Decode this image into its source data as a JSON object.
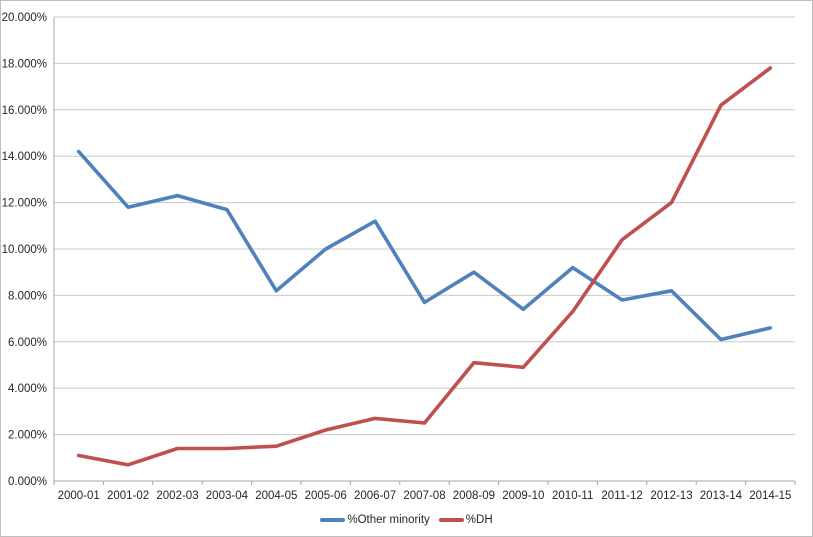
{
  "page": {
    "background": "#FFFFFF",
    "border_color": "#BFBFBF"
  },
  "chart_data": {
    "type": "line",
    "categories": [
      "2000-01",
      "2001-02",
      "2002-03",
      "2003-04",
      "2004-05",
      "2005-06",
      "2006-07",
      "2007-08",
      "2008-09",
      "2009-10",
      "2010-11",
      "2011-12",
      "2012-13",
      "2013-14",
      "2014-15"
    ],
    "series": [
      {
        "name": "%Other minority",
        "color": "#4F81BD",
        "values": [
          14.2,
          11.8,
          12.3,
          11.7,
          8.2,
          10.0,
          11.2,
          7.7,
          9.0,
          7.4,
          9.2,
          7.8,
          8.2,
          6.1,
          6.6
        ]
      },
      {
        "name": "%DH",
        "color": "#C0504D",
        "values": [
          1.1,
          0.7,
          1.4,
          1.4,
          1.5,
          2.2,
          2.7,
          2.5,
          5.1,
          4.9,
          7.3,
          10.4,
          12.0,
          16.2,
          17.8
        ]
      }
    ],
    "ylim": [
      0,
      20
    ],
    "y_tick_step": 2,
    "y_tick_labels": [
      "0.000%",
      "2.000%",
      "4.000%",
      "6.000%",
      "8.000%",
      "10.000%",
      "12.000%",
      "14.000%",
      "16.000%",
      "18.000%",
      "20.000%"
    ],
    "grid": true,
    "legend_position": "bottom-center",
    "gridline_color": "#C8C8C8",
    "axis_color": "#A6A6A6",
    "label_color": "#262626"
  }
}
